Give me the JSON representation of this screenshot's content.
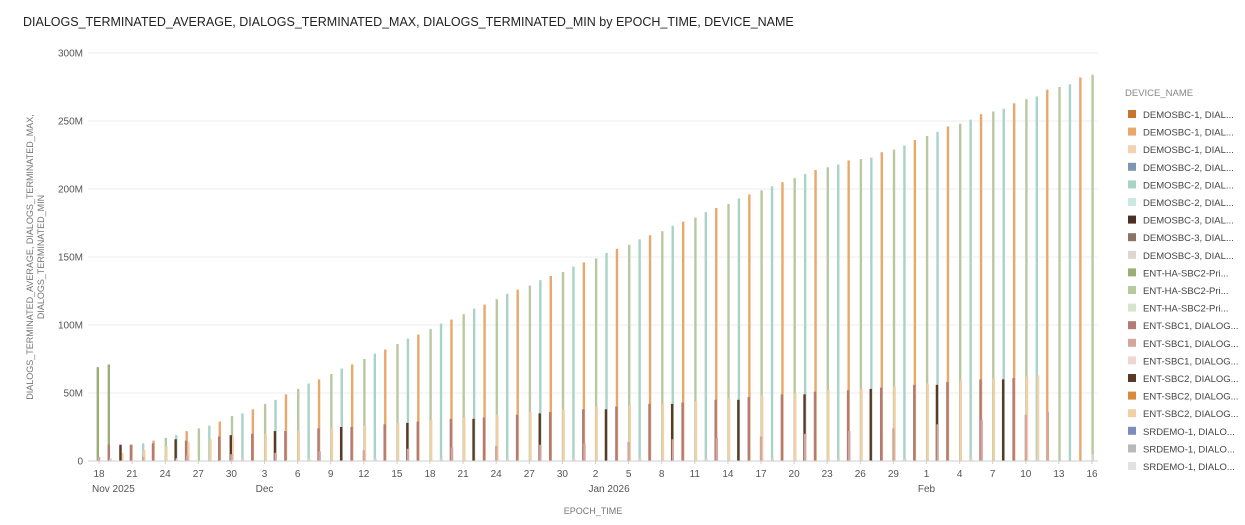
{
  "chart_data": {
    "type": "bar",
    "title": "DIALOGS_TERMINATED_AVERAGE, DIALOGS_TERMINATED_MAX, DIALOGS_TERMINATED_MIN by EPOCH_TIME, DEVICE_NAME",
    "xlabel": "EPOCH_TIME",
    "ylabel_lines": [
      "DIALOGS_TERMINATED_AVERAGE, DIALOGS_TERMINATED_MAX,",
      "DIALOGS_TERMINATED_MIN"
    ],
    "y_ticks": [
      "0",
      "50M",
      "100M",
      "150M",
      "200M",
      "250M",
      "300M"
    ],
    "ylim": [
      0,
      300
    ],
    "y_unit": "M",
    "grid": true,
    "legend_position": "right",
    "legend_title": "DEVICE_NAME",
    "x_range": [
      "2025-11-18",
      "2026-02-16"
    ],
    "x_ticks": [
      {
        "date": "2025-11-18",
        "label": "18",
        "sub": "Nov 2025"
      },
      {
        "date": "2025-11-21",
        "label": "21"
      },
      {
        "date": "2025-11-24",
        "label": "24"
      },
      {
        "date": "2025-11-27",
        "label": "27"
      },
      {
        "date": "2025-11-30",
        "label": "30"
      },
      {
        "date": "2025-12-03",
        "label": "3",
        "sub": "Dec"
      },
      {
        "date": "2025-12-06",
        "label": "6"
      },
      {
        "date": "2025-12-09",
        "label": "9"
      },
      {
        "date": "2025-12-12",
        "label": "12"
      },
      {
        "date": "2025-12-15",
        "label": "15"
      },
      {
        "date": "2025-12-18",
        "label": "18"
      },
      {
        "date": "2025-12-21",
        "label": "21"
      },
      {
        "date": "2025-12-24",
        "label": "24"
      },
      {
        "date": "2025-12-27",
        "label": "27"
      },
      {
        "date": "2025-12-30",
        "label": "30"
      },
      {
        "date": "2026-01-02",
        "label": "2",
        "sub": "Jan 2026"
      },
      {
        "date": "2026-01-05",
        "label": "5"
      },
      {
        "date": "2026-01-08",
        "label": "8"
      },
      {
        "date": "2026-01-11",
        "label": "11"
      },
      {
        "date": "2026-01-14",
        "label": "14"
      },
      {
        "date": "2026-01-17",
        "label": "17"
      },
      {
        "date": "2026-01-20",
        "label": "20"
      },
      {
        "date": "2026-01-23",
        "label": "23"
      },
      {
        "date": "2026-01-26",
        "label": "26"
      },
      {
        "date": "2026-01-29",
        "label": "29"
      },
      {
        "date": "2026-02-01",
        "label": "1",
        "sub": "Feb"
      },
      {
        "date": "2026-02-04",
        "label": "4"
      },
      {
        "date": "2026-02-07",
        "label": "7"
      },
      {
        "date": "2026-02-10",
        "label": "10"
      },
      {
        "date": "2026-02-13",
        "label": "13"
      },
      {
        "date": "2026-02-16",
        "label": "16"
      }
    ],
    "legend": [
      {
        "label": "DEMOSBC-1, DIAL...",
        "color": "#c8742c"
      },
      {
        "label": "DEMOSBC-1, DIAL...",
        "color": "#e8a86a"
      },
      {
        "label": "DEMOSBC-1, DIAL...",
        "color": "#f2d2b0"
      },
      {
        "label": "DEMOSBC-2, DIAL...",
        "color": "#7e96b4"
      },
      {
        "label": "DEMOSBC-2, DIAL...",
        "color": "#a9d3c6"
      },
      {
        "label": "DEMOSBC-2, DIAL...",
        "color": "#c9e9e2"
      },
      {
        "label": "DEMOSBC-3, DIAL...",
        "color": "#4a2f22"
      },
      {
        "label": "DEMOSBC-3, DIAL...",
        "color": "#8b7366"
      },
      {
        "label": "DEMOSBC-3, DIAL...",
        "color": "#ddd5cf"
      },
      {
        "label": "ENT-HA-SBC2-Pri...",
        "color": "#9aae78"
      },
      {
        "label": "ENT-HA-SBC2-Pri...",
        "color": "#b8c9a2"
      },
      {
        "label": "ENT-HA-SBC2-Pri...",
        "color": "#d9e4cc"
      },
      {
        "label": "ENT-SBC1, DIALOG...",
        "color": "#b47a74"
      },
      {
        "label": "ENT-SBC1, DIALOG...",
        "color": "#d3a69e"
      },
      {
        "label": "ENT-SBC1, DIALOG...",
        "color": "#efd6d2"
      },
      {
        "label": "ENT-SBC2, DIALOG...",
        "color": "#5a3a25"
      },
      {
        "label": "ENT-SBC2, DIALOG...",
        "color": "#d98a3c"
      },
      {
        "label": "ENT-SBC2, DIALOG...",
        "color": "#f2d0a6"
      },
      {
        "label": "SRDEMO-1, DIALO...",
        "color": "#7b8db8"
      },
      {
        "label": "SRDEMO-1, DIALO...",
        "color": "#b8b8b8"
      },
      {
        "label": "SRDEMO-1, DIALO...",
        "color": "#e2e2e2"
      }
    ],
    "series": [
      {
        "color": "#9aae78",
        "points": [
          [
            "2025-11-18",
            69
          ],
          [
            "2025-11-19",
            71
          ]
        ]
      },
      {
        "color": "#e8a86a",
        "points": [
          [
            "2025-11-20",
            10
          ],
          [
            "2025-11-21",
            12
          ],
          [
            "2025-11-23",
            15
          ],
          [
            "2025-11-26",
            22
          ],
          [
            "2025-11-29",
            29
          ],
          [
            "2025-12-02",
            38
          ],
          [
            "2025-12-05",
            49
          ],
          [
            "2025-12-08",
            60
          ],
          [
            "2025-12-11",
            71
          ],
          [
            "2025-12-14",
            82
          ],
          [
            "2025-12-17",
            93
          ],
          [
            "2025-12-20",
            104
          ],
          [
            "2025-12-23",
            115
          ],
          [
            "2025-12-26",
            126
          ],
          [
            "2025-12-29",
            136
          ],
          [
            "2026-01-01",
            146
          ],
          [
            "2026-01-04",
            156
          ],
          [
            "2026-01-07",
            166
          ],
          [
            "2026-01-10",
            176
          ],
          [
            "2026-01-13",
            186
          ],
          [
            "2026-01-16",
            196
          ],
          [
            "2026-01-19",
            205
          ],
          [
            "2026-01-22",
            214
          ],
          [
            "2026-01-25",
            221
          ],
          [
            "2026-01-28",
            227
          ],
          [
            "2026-01-31",
            236
          ],
          [
            "2026-02-03",
            246
          ],
          [
            "2026-02-06",
            255
          ],
          [
            "2026-02-09",
            263
          ],
          [
            "2026-02-12",
            273
          ],
          [
            "2026-02-15",
            282
          ]
        ]
      },
      {
        "color": "#a9d3c6",
        "points": [
          [
            "2025-11-22",
            13
          ],
          [
            "2025-11-25",
            19
          ],
          [
            "2025-11-28",
            26
          ],
          [
            "2025-12-01",
            35
          ],
          [
            "2025-12-04",
            45
          ],
          [
            "2025-12-07",
            57
          ],
          [
            "2025-12-10",
            68
          ],
          [
            "2025-12-13",
            79
          ],
          [
            "2025-12-16",
            90
          ],
          [
            "2025-12-19",
            101
          ],
          [
            "2025-12-22",
            112
          ],
          [
            "2025-12-25",
            123
          ],
          [
            "2025-12-28",
            133
          ],
          [
            "2025-12-31",
            143
          ],
          [
            "2026-01-03",
            153
          ],
          [
            "2026-01-06",
            163
          ],
          [
            "2026-01-09",
            173
          ],
          [
            "2026-01-12",
            183
          ],
          [
            "2026-01-15",
            193
          ],
          [
            "2026-01-18",
            202
          ],
          [
            "2026-01-21",
            211
          ],
          [
            "2026-01-24",
            218
          ],
          [
            "2026-01-27",
            223
          ],
          [
            "2026-01-30",
            232
          ],
          [
            "2026-02-02",
            242
          ],
          [
            "2026-02-05",
            251
          ],
          [
            "2026-02-08",
            259
          ],
          [
            "2026-02-11",
            268
          ],
          [
            "2026-02-14",
            277
          ]
        ]
      },
      {
        "color": "#b8c9a2",
        "points": [
          [
            "2025-11-24",
            17
          ],
          [
            "2025-11-27",
            24
          ],
          [
            "2025-11-30",
            33
          ],
          [
            "2025-12-03",
            42
          ],
          [
            "2025-12-06",
            53
          ],
          [
            "2025-12-09",
            64
          ],
          [
            "2025-12-12",
            75
          ],
          [
            "2025-12-15",
            86
          ],
          [
            "2025-12-18",
            97
          ],
          [
            "2025-12-21",
            108
          ],
          [
            "2025-12-24",
            119
          ],
          [
            "2025-12-27",
            129
          ],
          [
            "2025-12-30",
            139
          ],
          [
            "2026-01-02",
            149
          ],
          [
            "2026-01-05",
            159
          ],
          [
            "2026-01-08",
            169
          ],
          [
            "2026-01-11",
            179
          ],
          [
            "2026-01-14",
            189
          ],
          [
            "2026-01-17",
            199
          ],
          [
            "2026-01-20",
            208
          ],
          [
            "2026-01-23",
            216
          ],
          [
            "2026-01-26",
            222
          ],
          [
            "2026-01-29",
            229
          ],
          [
            "2026-02-01",
            239
          ],
          [
            "2026-02-04",
            248
          ],
          [
            "2026-02-07",
            257
          ],
          [
            "2026-02-10",
            266
          ],
          [
            "2026-02-13",
            275
          ],
          [
            "2026-02-16",
            284
          ]
        ]
      },
      {
        "color": "#f2d0a6",
        "points": [
          [
            "2025-11-20",
            6
          ],
          [
            "2025-11-22",
            8
          ],
          [
            "2025-11-24",
            11
          ],
          [
            "2025-11-26",
            14
          ],
          [
            "2025-11-28",
            16
          ],
          [
            "2025-11-30",
            18
          ],
          [
            "2025-12-03",
            20
          ],
          [
            "2025-12-06",
            22
          ],
          [
            "2025-12-09",
            24
          ],
          [
            "2025-12-12",
            26
          ],
          [
            "2025-12-15",
            28
          ],
          [
            "2025-12-18",
            30
          ],
          [
            "2025-12-21",
            32
          ],
          [
            "2025-12-24",
            34
          ],
          [
            "2025-12-27",
            36
          ],
          [
            "2025-12-30",
            38
          ],
          [
            "2026-01-02",
            40
          ],
          [
            "2026-01-05",
            41
          ],
          [
            "2026-01-08",
            42
          ],
          [
            "2026-01-11",
            44
          ],
          [
            "2026-01-14",
            46
          ],
          [
            "2026-01-17",
            48
          ],
          [
            "2026-01-20",
            50
          ],
          [
            "2026-01-23",
            52
          ],
          [
            "2026-01-26",
            53
          ],
          [
            "2026-01-29",
            55
          ],
          [
            "2026-02-01",
            57
          ],
          [
            "2026-02-04",
            59
          ],
          [
            "2026-02-07",
            61
          ],
          [
            "2026-02-10",
            62
          ],
          [
            "2026-02-11",
            63
          ]
        ]
      },
      {
        "color": "#b47a74",
        "points": [
          [
            "2025-11-19",
            12
          ],
          [
            "2025-11-21",
            12
          ],
          [
            "2025-11-23",
            13
          ],
          [
            "2025-11-26",
            15
          ],
          [
            "2025-11-29",
            18
          ],
          [
            "2025-12-02",
            20
          ],
          [
            "2025-12-05",
            22
          ],
          [
            "2025-12-08",
            24
          ],
          [
            "2025-12-11",
            25
          ],
          [
            "2025-12-14",
            27
          ],
          [
            "2025-12-17",
            29
          ],
          [
            "2025-12-20",
            31
          ],
          [
            "2025-12-23",
            32
          ],
          [
            "2025-12-26",
            34
          ],
          [
            "2025-12-29",
            36
          ],
          [
            "2026-01-01",
            38
          ],
          [
            "2026-01-04",
            40
          ],
          [
            "2026-01-07",
            42
          ],
          [
            "2026-01-10",
            43
          ],
          [
            "2026-01-13",
            45
          ],
          [
            "2026-01-16",
            47
          ],
          [
            "2026-01-19",
            49
          ],
          [
            "2026-01-22",
            51
          ],
          [
            "2026-01-25",
            52
          ],
          [
            "2026-01-28",
            54
          ],
          [
            "2026-01-31",
            56
          ],
          [
            "2026-02-03",
            58
          ],
          [
            "2026-02-06",
            60
          ],
          [
            "2026-02-09",
            61
          ]
        ]
      },
      {
        "color": "#5a3a25",
        "points": [
          [
            "2025-11-20",
            12
          ],
          [
            "2025-11-25",
            16
          ],
          [
            "2025-11-30",
            19
          ],
          [
            "2025-12-04",
            22
          ],
          [
            "2025-12-10",
            25
          ],
          [
            "2025-12-16",
            28
          ],
          [
            "2025-12-22",
            31
          ],
          [
            "2025-12-28",
            35
          ],
          [
            "2026-01-03",
            38
          ],
          [
            "2026-01-09",
            42
          ],
          [
            "2026-01-15",
            45
          ],
          [
            "2026-01-21",
            49
          ],
          [
            "2026-01-27",
            53
          ],
          [
            "2026-02-02",
            56
          ],
          [
            "2026-02-08",
            60
          ]
        ]
      },
      {
        "color": "#d3a69e",
        "points": [
          [
            "2025-11-18",
            3
          ],
          [
            "2025-11-22",
            3
          ],
          [
            "2025-11-26",
            4
          ],
          [
            "2025-11-30",
            5
          ],
          [
            "2025-12-04",
            6
          ],
          [
            "2025-12-08",
            7
          ],
          [
            "2025-12-12",
            8
          ],
          [
            "2025-12-16",
            9
          ],
          [
            "2025-12-20",
            10
          ],
          [
            "2025-12-24",
            11
          ],
          [
            "2025-12-28",
            12
          ],
          [
            "2026-01-01",
            13
          ],
          [
            "2026-01-05",
            14
          ],
          [
            "2026-01-09",
            16
          ],
          [
            "2026-01-13",
            17
          ],
          [
            "2026-01-17",
            18
          ],
          [
            "2026-01-21",
            20
          ],
          [
            "2026-01-25",
            22
          ],
          [
            "2026-01-29",
            24
          ],
          [
            "2026-02-02",
            27
          ],
          [
            "2026-02-06",
            30
          ],
          [
            "2026-02-10",
            34
          ],
          [
            "2026-02-12",
            36
          ]
        ]
      },
      {
        "color": "#ddd5cf",
        "points": [
          [
            "2025-11-19",
            2
          ],
          [
            "2025-11-25",
            2
          ],
          [
            "2025-12-01",
            2
          ],
          [
            "2025-12-07",
            2
          ],
          [
            "2025-12-13",
            2
          ],
          [
            "2025-12-19",
            2
          ],
          [
            "2025-12-25",
            2
          ],
          [
            "2025-12-31",
            2
          ],
          [
            "2026-01-06",
            2
          ],
          [
            "2026-01-12",
            2
          ],
          [
            "2026-01-18",
            2
          ],
          [
            "2026-01-24",
            2
          ],
          [
            "2026-01-30",
            2
          ],
          [
            "2026-02-05",
            2
          ],
          [
            "2026-02-11",
            2
          ],
          [
            "2026-02-16",
            5
          ]
        ]
      }
    ]
  }
}
